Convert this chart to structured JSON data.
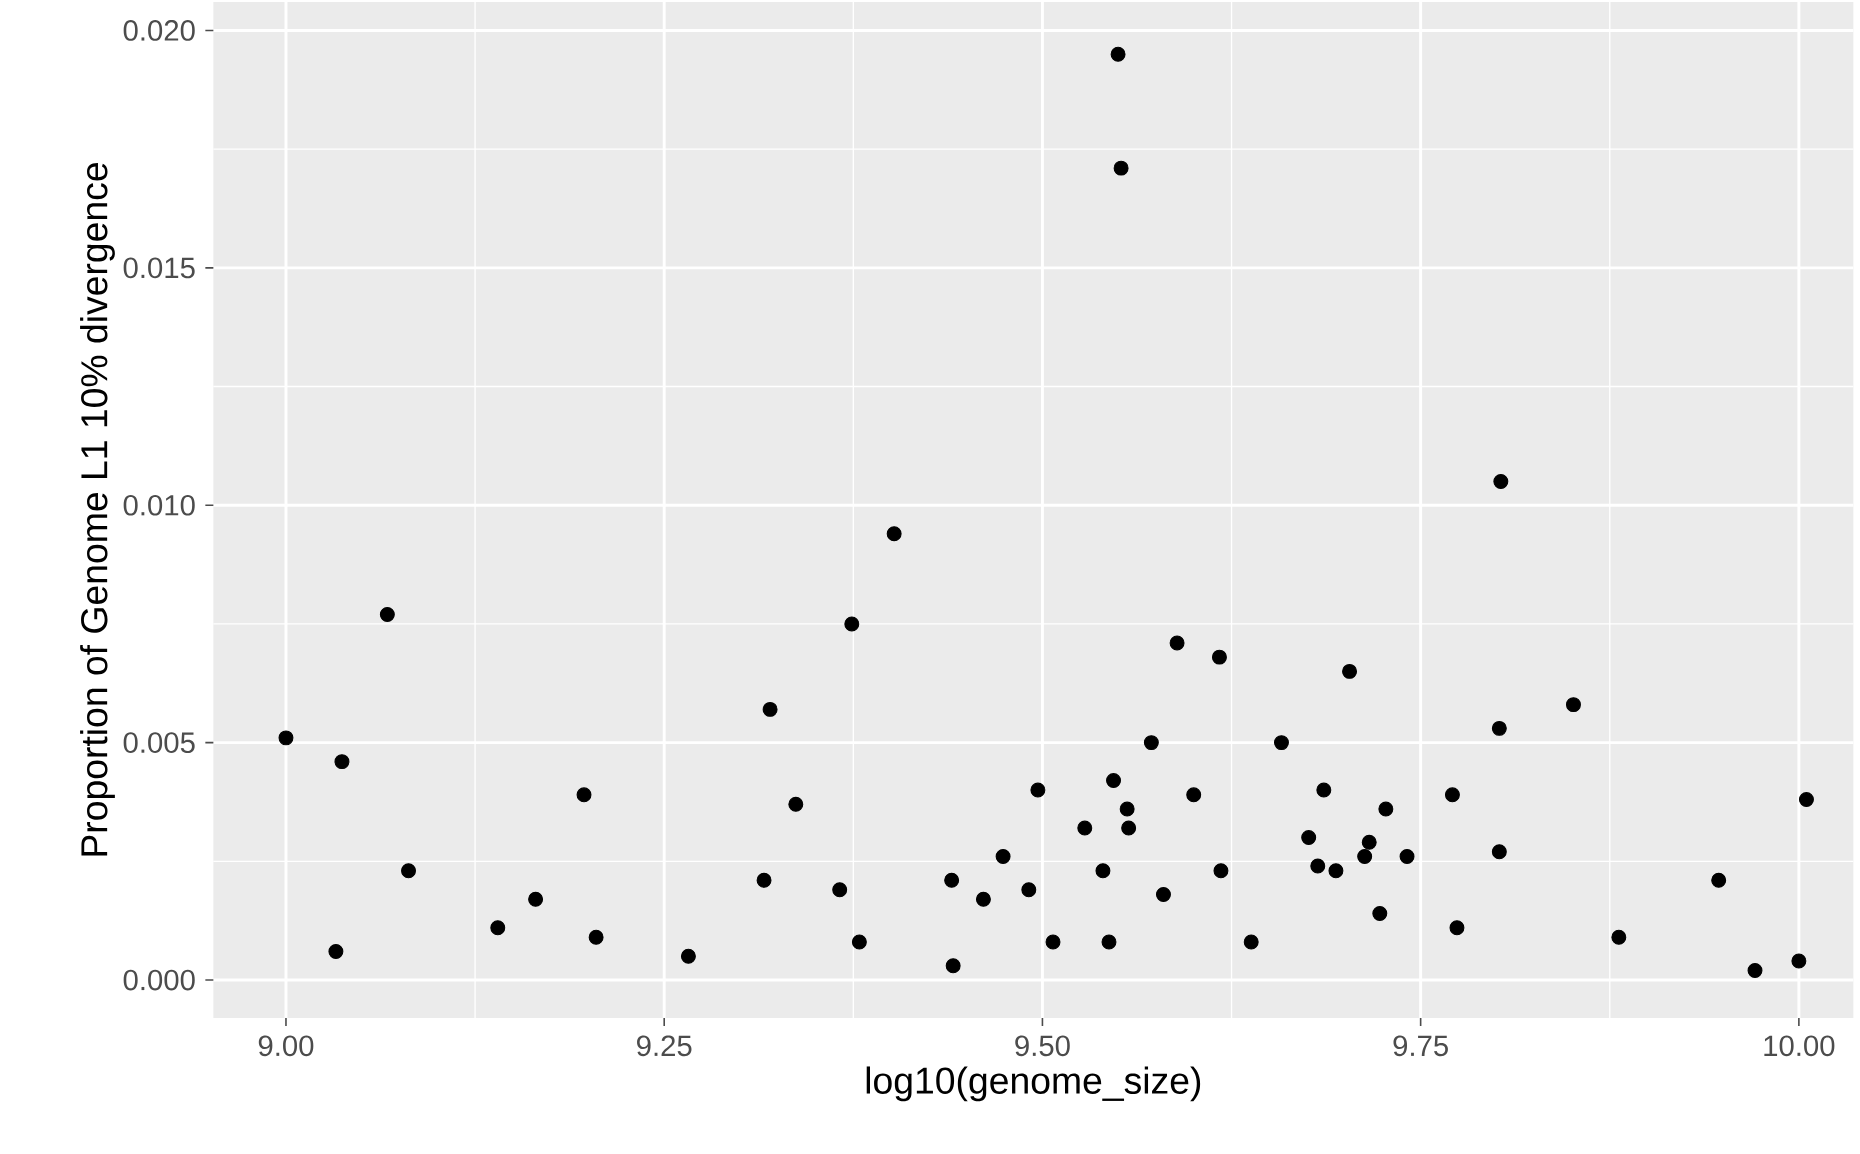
{
  "chart_data": {
    "type": "scatter",
    "xlabel": "log10(genome_size)",
    "ylabel": "Proportion of Genome L1 10% divergence",
    "x": [
      9.0,
      9.033,
      9.037,
      9.067,
      9.081,
      9.14,
      9.165,
      9.197,
      9.205,
      9.266,
      9.316,
      9.32,
      9.337,
      9.366,
      9.374,
      9.379,
      9.402,
      9.44,
      9.441,
      9.461,
      9.474,
      9.491,
      9.497,
      9.507,
      9.528,
      9.54,
      9.544,
      9.547,
      9.55,
      9.552,
      9.556,
      9.557,
      9.572,
      9.58,
      9.589,
      9.6,
      9.617,
      9.618,
      9.638,
      9.658,
      9.676,
      9.682,
      9.686,
      9.694,
      9.703,
      9.713,
      9.716,
      9.723,
      9.727,
      9.741,
      9.771,
      9.774,
      9.802,
      9.802,
      9.803,
      9.851,
      9.881,
      9.947,
      9.971,
      10.0,
      10.005
    ],
    "values": [
      0.0051,
      0.0006,
      0.0046,
      0.0077,
      0.0023,
      0.0011,
      0.0017,
      0.0039,
      0.0009,
      0.0005,
      0.0021,
      0.0057,
      0.0037,
      0.0019,
      0.0075,
      0.0008,
      0.0094,
      0.0021,
      0.0003,
      0.0017,
      0.0026,
      0.0019,
      0.004,
      0.0008,
      0.0032,
      0.0023,
      0.0008,
      0.0042,
      0.0195,
      0.0171,
      0.0036,
      0.0032,
      0.005,
      0.0018,
      0.0071,
      0.0039,
      0.0068,
      0.0023,
      0.0008,
      0.005,
      0.003,
      0.0024,
      0.004,
      0.0023,
      0.0065,
      0.0026,
      0.0029,
      0.0014,
      0.0036,
      0.0026,
      0.0039,
      0.0011,
      0.0027,
      0.0053,
      0.0105,
      0.0058,
      0.0009,
      0.0021,
      0.0002,
      0.0004,
      0.0038
    ],
    "color": "#000000",
    "grid": true,
    "xlim": [
      8.952,
      10.036
    ],
    "ylim": [
      -0.0008,
      0.0206
    ],
    "xticks": [
      {
        "value": 9.0,
        "label": "9.00"
      },
      {
        "value": 9.25,
        "label": "9.25"
      },
      {
        "value": 9.5,
        "label": "9.50"
      },
      {
        "value": 9.75,
        "label": "9.75"
      },
      {
        "value": 10.0,
        "label": "10.00"
      }
    ],
    "yticks": [
      {
        "value": 0.0,
        "label": "0.000"
      },
      {
        "value": 0.005,
        "label": "0.005"
      },
      {
        "value": 0.01,
        "label": "0.010"
      },
      {
        "value": 0.015,
        "label": "0.015"
      },
      {
        "value": 0.02,
        "label": "0.020"
      }
    ]
  }
}
